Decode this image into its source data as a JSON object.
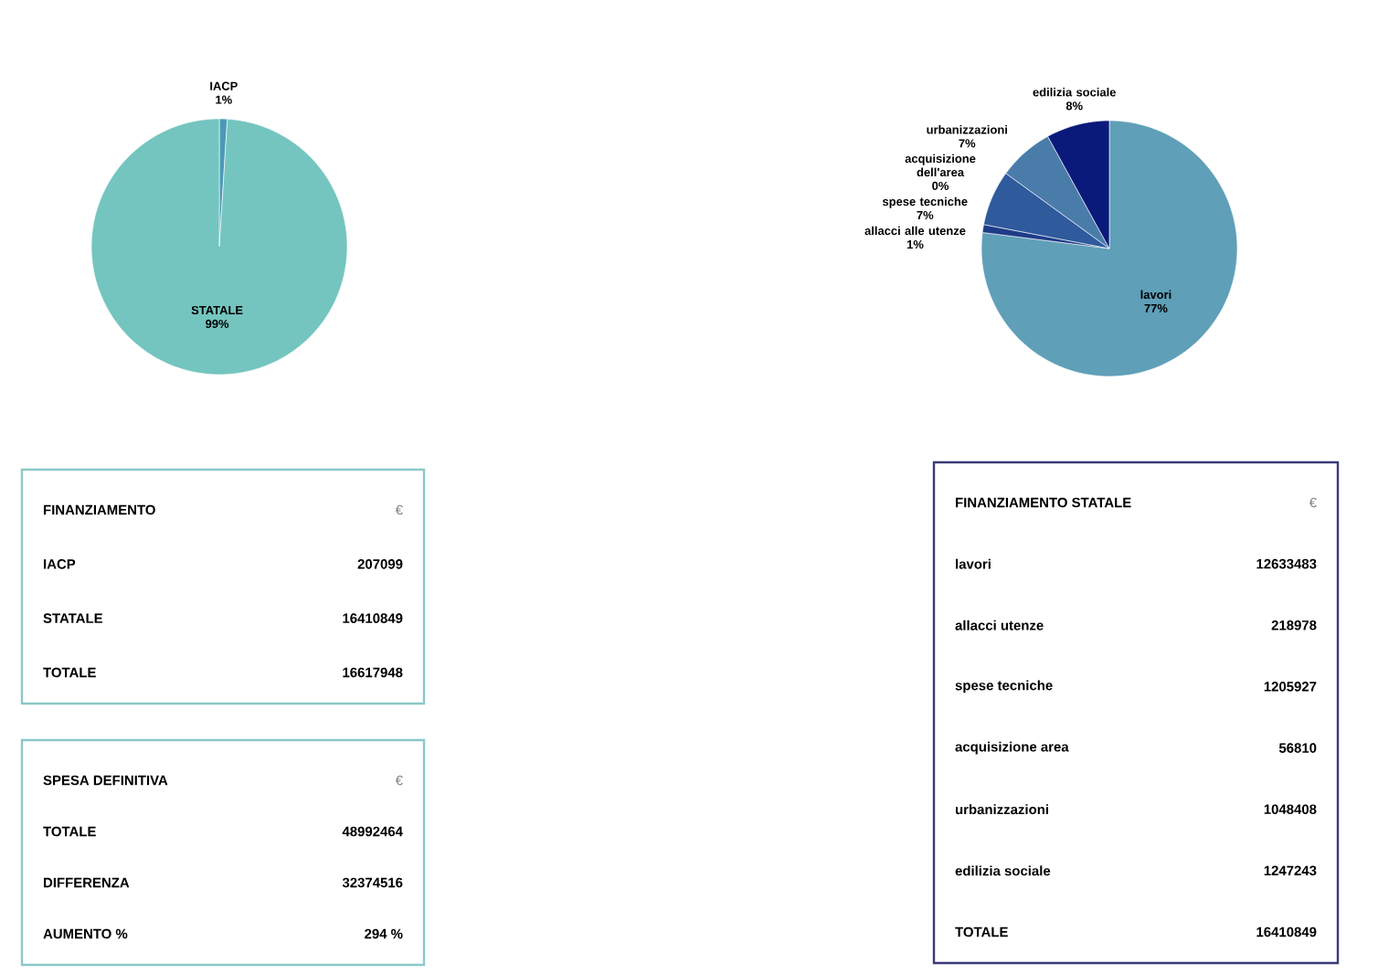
{
  "chart_data": [
    {
      "type": "pie",
      "categories": [
        "IACP",
        "STATALE"
      ],
      "values": [
        1,
        99
      ],
      "value_labels": [
        "1%",
        "99%"
      ],
      "colors": [
        "#4a9ab5",
        "#74c5bf"
      ]
    },
    {
      "type": "pie",
      "categories": [
        "lavori",
        "allacci alle utenze",
        "spese tecniche",
        "acquisizione dell'area",
        "urbanizzazioni",
        "edilizia sociale"
      ],
      "values": [
        77,
        1,
        7,
        0,
        7,
        8
      ],
      "value_labels": [
        "77%",
        "1%",
        "7%",
        "0%",
        "7%",
        "8%"
      ],
      "colors": [
        "#5f9fb8",
        "#1f3c88",
        "#2f5a9c",
        "#7fb0cc",
        "#4a7caa",
        "#0a1a7a"
      ]
    },
    {
      "type": "other",
      "title": "FINANZIAMENTO",
      "annotations": [
        "€"
      ],
      "categories": [
        "IACP",
        "STATALE",
        "TOTALE"
      ],
      "values": [
        207099,
        16410849,
        16617948
      ],
      "data_labels": true,
      "color": "#8cc8c8"
    },
    {
      "type": "other",
      "title": "SPESA DEFINITIVA",
      "annotations": [
        "€"
      ],
      "categories": [
        "TOTALE",
        "DIFFERENZA",
        "AUMENTO %"
      ],
      "values": [
        48992464,
        32374516,
        294
      ],
      "value_labels": [
        "48992464",
        "32374516",
        "294 %"
      ],
      "color": "#8cc8c8"
    },
    {
      "type": "other",
      "title": "FINANZIAMENTO STATALE",
      "annotations": [
        "€"
      ],
      "categories": [
        "lavori",
        "allacci utenze",
        "spese tecniche",
        "acquisizione area",
        "urbanizzazioni",
        "edilizia sociale",
        "TOTALE"
      ],
      "values": [
        12633483,
        218978,
        1205927,
        56810,
        1048408,
        1247243,
        16410849
      ],
      "data_labels": true,
      "color": "#3a3a7a"
    }
  ]
}
